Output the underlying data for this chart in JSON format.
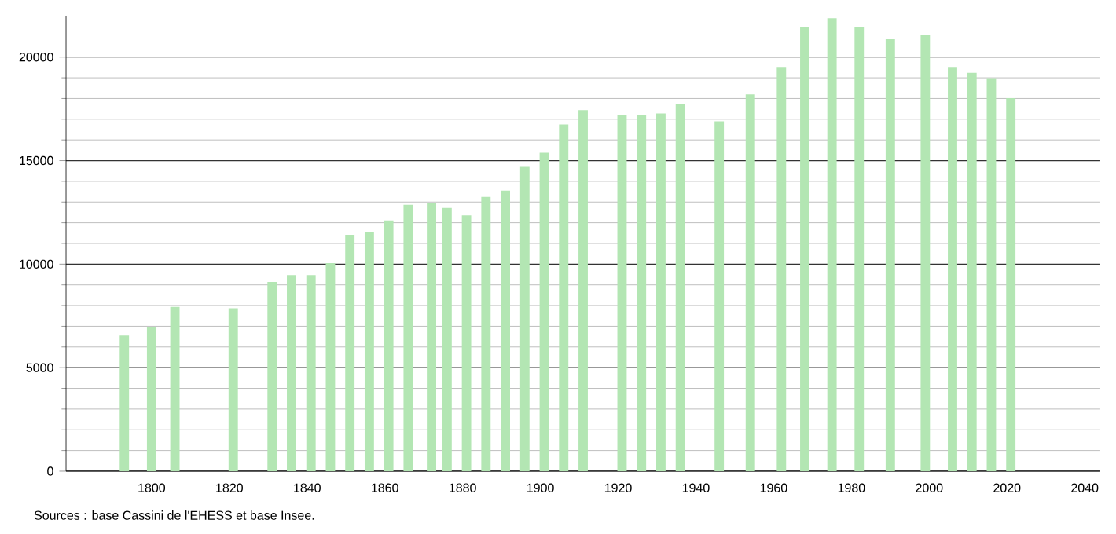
{
  "chart_data": {
    "type": "bar",
    "x": [
      1793,
      1800,
      1806,
      1821,
      1831,
      1836,
      1841,
      1846,
      1851,
      1856,
      1861,
      1866,
      1872,
      1876,
      1881,
      1886,
      1891,
      1896,
      1901,
      1906,
      1911,
      1921,
      1926,
      1931,
      1936,
      1946,
      1954,
      1962,
      1968,
      1975,
      1982,
      1990,
      1999,
      2006,
      2011,
      2016,
      2021
    ],
    "values": [
      6550,
      6980,
      7940,
      7870,
      9140,
      9470,
      9470,
      10050,
      11420,
      11570,
      12110,
      12870,
      12970,
      12720,
      12360,
      13250,
      13550,
      14700,
      15380,
      16750,
      17440,
      17210,
      17210,
      17280,
      17720,
      16900,
      18200,
      19520,
      21450,
      21880,
      21470,
      20860,
      21090,
      19520,
      19240,
      18980,
      18020
    ],
    "color": "#b3e6b3",
    "xlim": [
      1778,
      2044
    ],
    "ylim": [
      0,
      22000
    ],
    "xticks": [
      1800,
      1820,
      1840,
      1860,
      1880,
      1900,
      1920,
      1940,
      1960,
      1980,
      2000,
      2020,
      2040
    ],
    "yticks": [
      0,
      5000,
      10000,
      15000,
      20000
    ],
    "grid": "y",
    "annotations": [
      "Sources : base Cassini de l'EHESS et base Insee."
    ]
  }
}
